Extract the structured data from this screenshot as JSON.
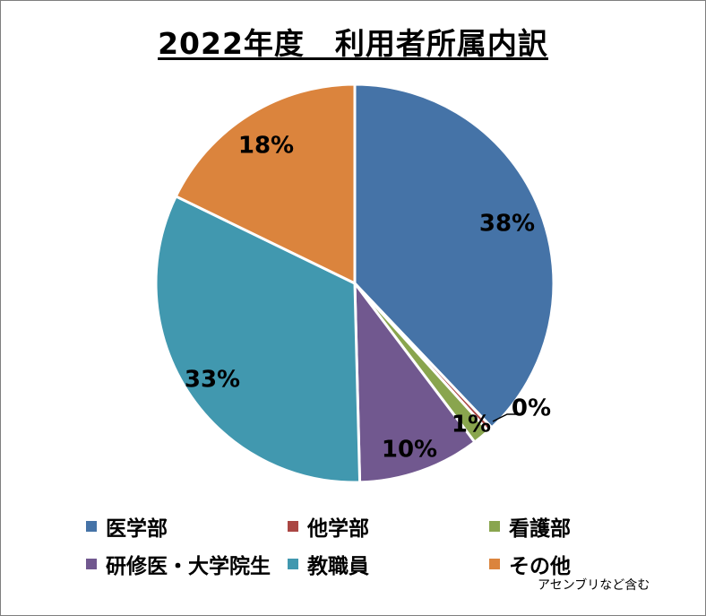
{
  "title": "2022年度　利用者所属内訳",
  "footnote": "アセンブリなど含む",
  "chart_data": {
    "type": "pie",
    "title": "2022年度　利用者所属内訳",
    "start_angle_deg": 0,
    "direction": "clockwise",
    "legend_position": "bottom",
    "slices": [
      {
        "label": "医学部",
        "value": 37.9,
        "display": "38%",
        "color": "#4573a7"
      },
      {
        "label": "他学部",
        "value": 0.4,
        "display": "0%",
        "color": "#aa4643"
      },
      {
        "label": "看護部",
        "value": 1.4,
        "display": "1%",
        "color": "#89a54e"
      },
      {
        "label": "研修医・大学院生",
        "value": 9.9,
        "display": "10%",
        "color": "#71588f"
      },
      {
        "label": "教職員",
        "value": 32.6,
        "display": "33%",
        "color": "#4198af"
      },
      {
        "label": "その他",
        "value": 17.8,
        "display": "18%",
        "color": "#db843d"
      }
    ]
  }
}
